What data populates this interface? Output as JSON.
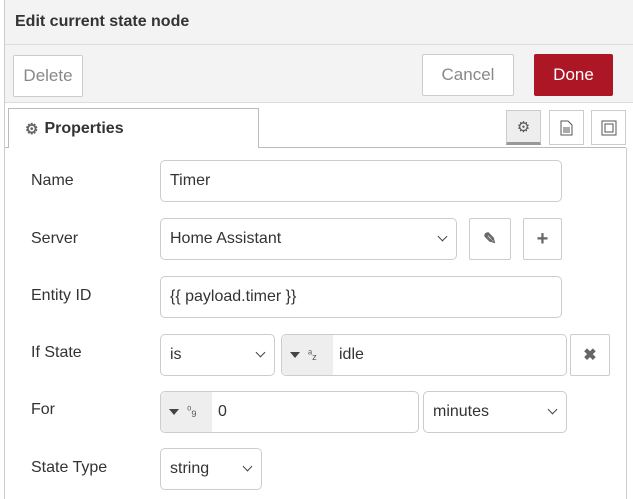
{
  "dialog": {
    "title": "Edit current state node",
    "delete_label": "Delete",
    "cancel_label": "Cancel",
    "done_label": "Done",
    "done_color": "#ad1625"
  },
  "tabs": {
    "properties_label": "Properties",
    "icons": [
      "gear-icon",
      "description-icon",
      "appearance-icon"
    ]
  },
  "form": {
    "name": {
      "label": "Name",
      "value": "Timer"
    },
    "server": {
      "label": "Server",
      "value": "Home Assistant"
    },
    "entity_id": {
      "label": "Entity ID",
      "value": "{{ payload.timer }}"
    },
    "if_state": {
      "label": "If State",
      "operator": "is",
      "type": "string",
      "value": "idle"
    },
    "for": {
      "label": "For",
      "type": "number",
      "value": "0",
      "unit": "minutes"
    },
    "state_type": {
      "label": "State Type",
      "value": "string"
    }
  }
}
